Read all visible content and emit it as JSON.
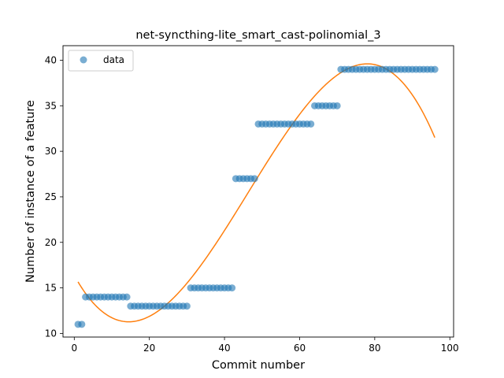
{
  "chart_data": {
    "type": "scatter",
    "title": "net-syncthing-lite_smart_cast-polinomial_3",
    "xlabel": "Commit number",
    "ylabel": "Number of instance of a feature",
    "xlim": [
      -3,
      101
    ],
    "ylim": [
      9.6,
      41.6
    ],
    "xticks": [
      0,
      20,
      40,
      60,
      80,
      100
    ],
    "yticks": [
      10,
      15,
      20,
      25,
      30,
      35,
      40
    ],
    "grid": false,
    "legend": {
      "position": "top-left",
      "entries": [
        "data"
      ]
    },
    "series": [
      {
        "name": "data",
        "kind": "scatter",
        "color": "#1f77b4",
        "x": [
          1,
          2,
          3,
          4,
          5,
          6,
          7,
          8,
          9,
          10,
          11,
          12,
          13,
          14,
          15,
          16,
          17,
          18,
          19,
          20,
          21,
          22,
          23,
          24,
          25,
          26,
          27,
          28,
          29,
          30,
          31,
          32,
          33,
          34,
          35,
          36,
          37,
          38,
          39,
          40,
          41,
          42,
          43,
          44,
          45,
          46,
          47,
          48,
          49,
          50,
          51,
          52,
          53,
          54,
          55,
          56,
          57,
          58,
          59,
          60,
          61,
          62,
          63,
          64,
          65,
          66,
          67,
          68,
          69,
          70,
          71,
          72,
          73,
          74,
          75,
          76,
          77,
          78,
          79,
          80,
          81,
          82,
          83,
          84,
          85,
          86,
          87,
          88,
          89,
          90,
          91,
          92,
          93,
          94,
          95,
          96
        ],
        "y": [
          11,
          11,
          14,
          14,
          14,
          14,
          14,
          14,
          14,
          14,
          14,
          14,
          14,
          14,
          13,
          13,
          13,
          13,
          13,
          13,
          13,
          13,
          13,
          13,
          13,
          13,
          13,
          13,
          13,
          13,
          15,
          15,
          15,
          15,
          15,
          15,
          15,
          15,
          15,
          15,
          15,
          15,
          27,
          27,
          27,
          27,
          27,
          27,
          33,
          33,
          33,
          33,
          33,
          33,
          33,
          33,
          33,
          33,
          33,
          33,
          33,
          33,
          33,
          35,
          35,
          35,
          35,
          35,
          35,
          35,
          39,
          39,
          39,
          39,
          39,
          39,
          39,
          39,
          39,
          39,
          39,
          39,
          39,
          39,
          39,
          39,
          39,
          39,
          39,
          39,
          39,
          39,
          39,
          39,
          39,
          39
        ]
      },
      {
        "name": "",
        "kind": "line",
        "color": "#ff7f0e",
        "polynomial_degree": 3,
        "coefficients": [
          16.38,
          -0.7505,
          0.030685,
          -0.0002211
        ],
        "x_range": [
          1,
          96
        ]
      }
    ]
  }
}
